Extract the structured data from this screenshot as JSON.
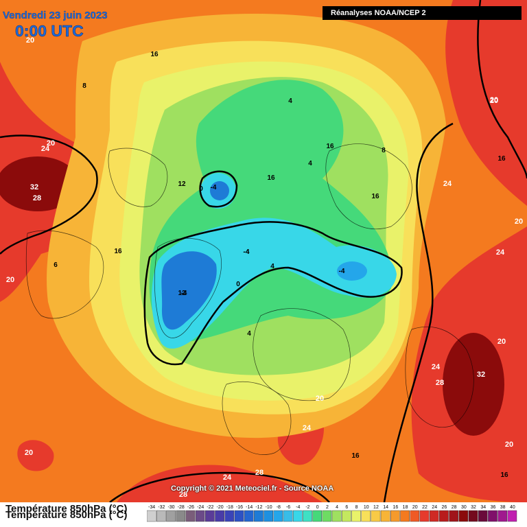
{
  "header": {
    "date": "Vendredi 23 juin 2023",
    "time": "0:00 UTC",
    "source": "Réanalyses NOAA/NCEP 2"
  },
  "footer": {
    "parameter": "Température 850hPa (°C)",
    "copyright": "Copyright © 2021 Meteociel.fr - Source NOAA"
  },
  "colors": {
    "very_hot": "#8b0b0b",
    "hot": "#e63a2c",
    "warm": "#f47a1f",
    "mild": "#f7b437",
    "pleasant": "#f8e05a",
    "cool": "#e9f26a",
    "fresh": "#9fe060",
    "cold": "#45d97a",
    "very_cold": "#38d7e8",
    "freezing": "#1e7bd6"
  },
  "scale": {
    "ticks": [
      "-34",
      "-32",
      "-30",
      "-28",
      "-26",
      "-24",
      "-22",
      "-20",
      "-18",
      "-16",
      "-14",
      "-12",
      "-10",
      "-8",
      "-6",
      "-4",
      "-2",
      "0",
      "2",
      "4",
      "6",
      "8",
      "10",
      "12",
      "14",
      "16",
      "18",
      "20",
      "22",
      "24",
      "26",
      "28",
      "30",
      "32",
      "34",
      "36",
      "38",
      "40"
    ],
    "colors": [
      "#cfcfcf",
      "#b9b9b9",
      "#a0a0a0",
      "#8a8a8a",
      "#7a5d7a",
      "#6b4a88",
      "#5a3c98",
      "#493ca8",
      "#3a44b8",
      "#2d52c4",
      "#2466d0",
      "#1e7bd6",
      "#1e90e0",
      "#24a6ea",
      "#38bde8",
      "#38d7e8",
      "#3fe0c4",
      "#45d97a",
      "#6edc63",
      "#9fe060",
      "#c4e85f",
      "#e9f26a",
      "#f8e05a",
      "#f8ca46",
      "#f7b437",
      "#f59a2c",
      "#f47a1f",
      "#ef5a25",
      "#e63a2c",
      "#cf2a24",
      "#b81c1c",
      "#a0141a",
      "#8b0b0b",
      "#740a1e",
      "#6a0a3a",
      "#80106a",
      "#a0188e",
      "#c020b0"
    ]
  },
  "map_labels": [
    "16",
    "8",
    "20",
    "4",
    "16",
    "8",
    "4",
    "16",
    "20",
    "16",
    "24",
    "20",
    "24",
    "32",
    "28",
    "12",
    "0",
    "-4",
    "6",
    "16",
    "24",
    "20",
    "12",
    "16",
    "-4",
    "-4",
    "4",
    "20",
    "-4",
    "-4",
    "0",
    "4",
    "24",
    "32",
    "28",
    "20",
    "20",
    "24",
    "16",
    "20",
    "24",
    "28",
    "28",
    "16",
    "20",
    "20"
  ]
}
